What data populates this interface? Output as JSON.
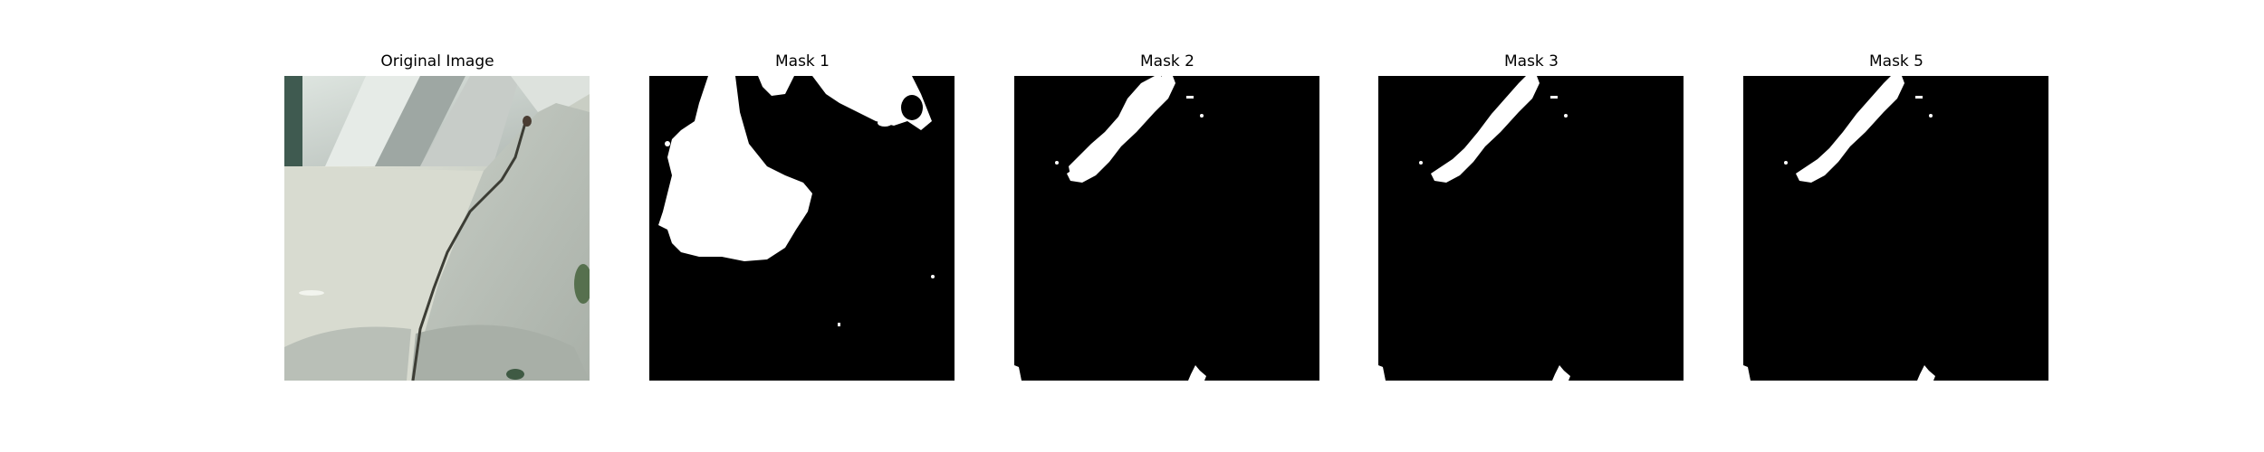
{
  "panels": [
    {
      "title": "Original Image"
    },
    {
      "title": "Mask 1"
    },
    {
      "title": "Mask 2"
    },
    {
      "title": "Mask 3"
    },
    {
      "title": "Mask 5"
    }
  ],
  "colors": {
    "mask_background": "#000000",
    "mask_foreground": "#ffffff",
    "photo_surface": "#c6ccc2",
    "photo_crack": "#3c3d35"
  }
}
